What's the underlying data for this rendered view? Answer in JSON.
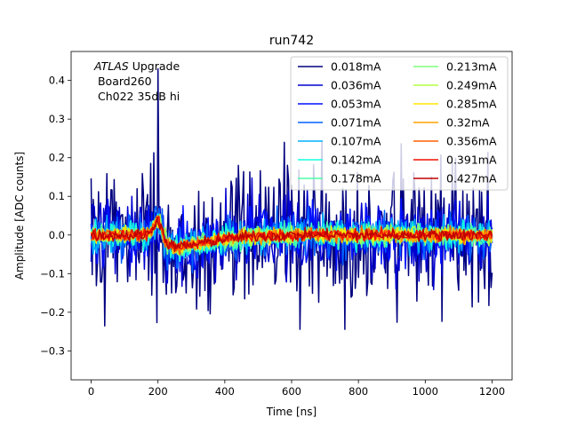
{
  "chart_data": {
    "type": "line",
    "title": "run742",
    "xlabel": "Time [ns]",
    "ylabel": "Amplitude [ADC counts]",
    "xlim": [
      -60,
      1260
    ],
    "ylim": [
      -0.375,
      0.475
    ],
    "xticks": [
      0,
      200,
      400,
      600,
      800,
      1000,
      1200
    ],
    "yticks": [
      -0.3,
      -0.2,
      -0.1,
      0.0,
      0.1,
      0.2,
      0.3,
      0.4
    ],
    "xtick_labels": [
      "0",
      "200",
      "400",
      "600",
      "800",
      "1000",
      "1200"
    ],
    "ytick_labels": [
      "−0.3",
      "−0.2",
      "−0.1",
      "0.0",
      "0.1",
      "0.2",
      "0.3",
      "0.4"
    ],
    "annotation": {
      "italic": "ATLAS",
      "line1_rest": " Upgrade",
      "line2": " Board260",
      "line3": " Ch022 35dB hi"
    },
    "legend_position": "top-right",
    "legend_columns": 2,
    "grid": false,
    "x_start": 0,
    "x_end": 1200,
    "x_step": 3.125,
    "pulse": {
      "peak_time": 200,
      "peak_amp": 0.04,
      "trough_time": 262,
      "trough_amp": -0.03
    },
    "series": [
      {
        "name": "0.018mA",
        "color": "#00007f",
        "noise_sd": 0.095
      },
      {
        "name": "0.036mA",
        "color": "#0000d0",
        "noise_sd": 0.05
      },
      {
        "name": "0.053mA",
        "color": "#0010ff",
        "noise_sd": 0.036
      },
      {
        "name": "0.071mA",
        "color": "#0060ff",
        "noise_sd": 0.028
      },
      {
        "name": "0.107mA",
        "color": "#00b0ff",
        "noise_sd": 0.021
      },
      {
        "name": "0.142mA",
        "color": "#16ffe1",
        "noise_sd": 0.017
      },
      {
        "name": "0.178mA",
        "color": "#4dffaa",
        "noise_sd": 0.014
      },
      {
        "name": "0.213mA",
        "color": "#7dff7a",
        "noise_sd": 0.012
      },
      {
        "name": "0.249mA",
        "color": "#b4ff43",
        "noise_sd": 0.011
      },
      {
        "name": "0.285mA",
        "color": "#ffe500",
        "noise_sd": 0.01
      },
      {
        "name": "0.32mA",
        "color": "#ffa000",
        "noise_sd": 0.009
      },
      {
        "name": "0.356mA",
        "color": "#ff6000",
        "noise_sd": 0.0085
      },
      {
        "name": "0.391mA",
        "color": "#f01000",
        "noise_sd": 0.008
      },
      {
        "name": "0.427mA",
        "color": "#c00000",
        "noise_sd": 0.0075
      }
    ]
  }
}
